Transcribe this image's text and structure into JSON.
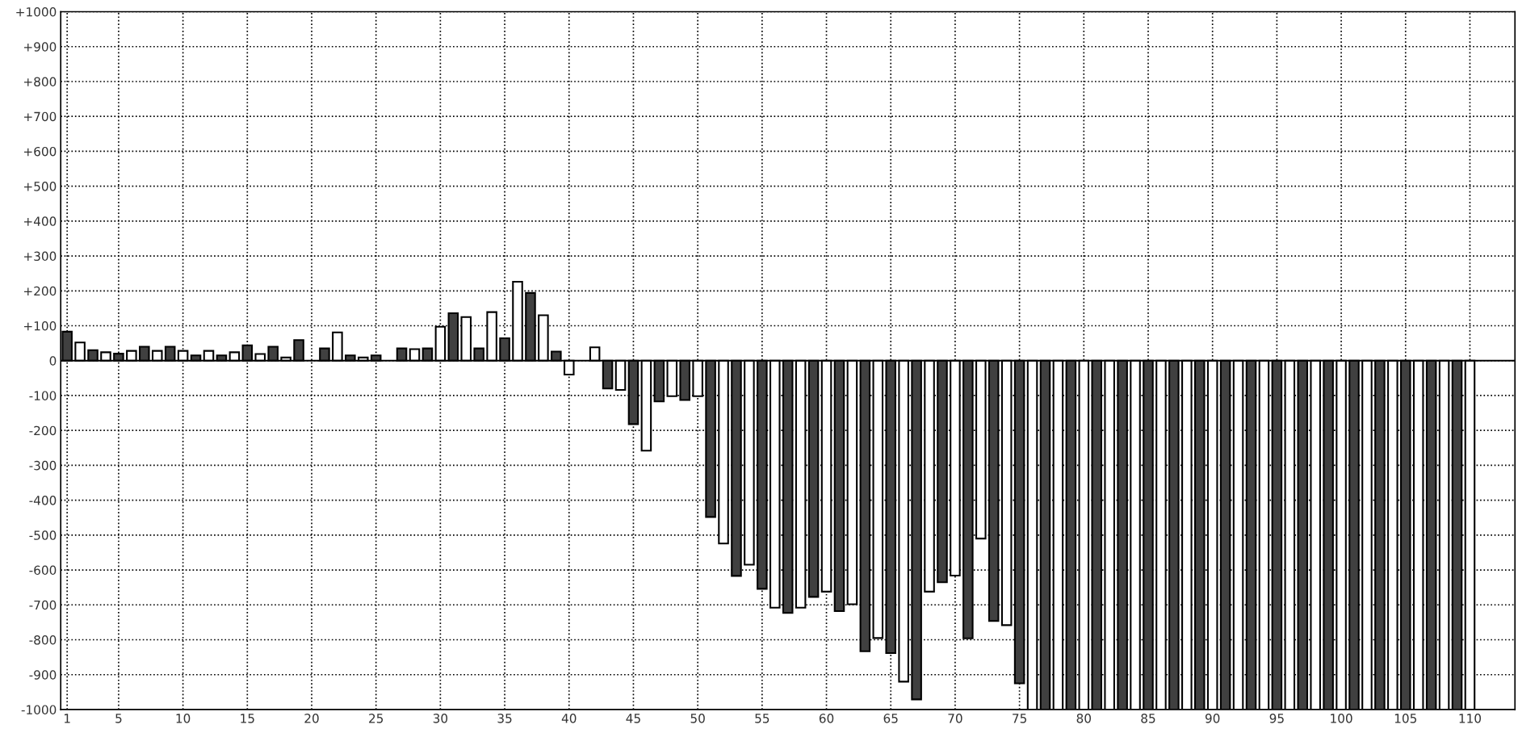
{
  "chart_data": {
    "type": "bar",
    "x": [
      1,
      2,
      3,
      4,
      5,
      6,
      7,
      8,
      9,
      10,
      11,
      12,
      13,
      14,
      15,
      16,
      17,
      18,
      19,
      20,
      21,
      22,
      23,
      24,
      25,
      26,
      27,
      28,
      29,
      30,
      31,
      32,
      33,
      34,
      35,
      36,
      37,
      38,
      39,
      40,
      41,
      42,
      43,
      44,
      45,
      46,
      47,
      48,
      49,
      50,
      51,
      52,
      53,
      54,
      55,
      56,
      57,
      58,
      59,
      60,
      61,
      62,
      63,
      64,
      65,
      66,
      67,
      68,
      69,
      70,
      71,
      72,
      73,
      74,
      75,
      76,
      77,
      78,
      79,
      80,
      81,
      82,
      83,
      84,
      85,
      86,
      87,
      88,
      89,
      90,
      91,
      92,
      93,
      94,
      95,
      96,
      97,
      98,
      99,
      100,
      101,
      102,
      103,
      104,
      105,
      106,
      107,
      108,
      109,
      110
    ],
    "values": [
      83,
      52,
      30,
      24,
      20,
      28,
      40,
      28,
      40,
      28,
      15,
      28,
      15,
      24,
      44,
      19,
      40,
      9,
      59,
      null,
      35,
      81,
      15,
      9,
      15,
      null,
      35,
      33,
      35,
      97,
      136,
      125,
      35,
      139,
      64,
      226,
      194,
      130,
      26,
      -40,
      null,
      38,
      -80,
      -84,
      -182,
      -258,
      -117,
      -102,
      -113,
      -102,
      -448,
      -524,
      -617,
      -585,
      -654,
      -708,
      -723,
      -708,
      -677,
      -662,
      -718,
      -698,
      -833,
      -795,
      -838,
      -920,
      -971,
      -662,
      -635,
      -616,
      -796,
      -510,
      -746,
      -758,
      -925,
      -1000,
      -1000,
      -1000,
      -1000,
      -1000,
      -1000,
      -1000,
      -1000,
      -1000,
      -1000,
      -1000,
      -1000,
      -1000,
      -1000,
      -1000,
      -1000,
      -1000,
      -1000,
      -1000,
      -1000,
      -1000,
      -1000,
      -1000,
      -1000,
      -1000,
      -1000,
      -1000,
      -1000,
      -1000,
      -1000,
      -1000,
      -1000,
      -1000,
      -1000,
      -1000
    ],
    "colors": [
      "#404040",
      "#ffffff",
      "#404040",
      "#ffffff",
      "#404040",
      "#ffffff",
      "#404040",
      "#ffffff",
      "#404040",
      "#ffffff",
      "#404040",
      "#ffffff",
      "#404040",
      "#ffffff",
      "#404040",
      "#ffffff",
      "#404040",
      "#ffffff",
      "#404040",
      "#ffffff",
      "#404040",
      "#ffffff",
      "#404040",
      "#ffffff",
      "#404040",
      "#ffffff",
      "#404040",
      "#ffffff",
      "#404040",
      "#ffffff",
      "#404040",
      "#ffffff",
      "#404040",
      "#ffffff",
      "#404040",
      "#ffffff",
      "#404040",
      "#ffffff",
      "#404040",
      "#ffffff",
      "#404040",
      "#ffffff",
      "#404040",
      "#ffffff",
      "#404040",
      "#ffffff",
      "#404040",
      "#ffffff",
      "#404040",
      "#ffffff",
      "#404040",
      "#ffffff",
      "#404040",
      "#ffffff",
      "#404040",
      "#ffffff",
      "#404040",
      "#ffffff",
      "#404040",
      "#ffffff",
      "#404040",
      "#ffffff",
      "#404040",
      "#ffffff",
      "#404040",
      "#ffffff",
      "#404040",
      "#ffffff",
      "#404040",
      "#ffffff",
      "#404040",
      "#ffffff",
      "#404040",
      "#ffffff",
      "#404040",
      "#ffffff",
      "#404040",
      "#ffffff",
      "#404040",
      "#ffffff",
      "#404040",
      "#ffffff",
      "#404040",
      "#ffffff",
      "#404040",
      "#ffffff",
      "#404040",
      "#ffffff",
      "#404040",
      "#ffffff",
      "#404040",
      "#ffffff",
      "#404040",
      "#ffffff",
      "#404040",
      "#ffffff",
      "#404040",
      "#ffffff",
      "#404040",
      "#ffffff",
      "#404040",
      "#ffffff",
      "#404040",
      "#ffffff",
      "#404040",
      "#ffffff",
      "#404040",
      "#ffffff",
      "#404040",
      "#ffffff"
    ],
    "xlim": [
      0.5,
      113.5
    ],
    "xticks": [
      1,
      5,
      10,
      15,
      20,
      25,
      30,
      35,
      40,
      45,
      50,
      55,
      60,
      65,
      70,
      75,
      80,
      85,
      90,
      95,
      100,
      105,
      110
    ],
    "ylim": [
      -1000,
      1000
    ],
    "yticks": [
      {
        "value": -1000,
        "label": "-1000"
      },
      {
        "value": -900,
        "label": "-900"
      },
      {
        "value": -800,
        "label": "-800"
      },
      {
        "value": -700,
        "label": "-700"
      },
      {
        "value": -600,
        "label": "-600"
      },
      {
        "value": -500,
        "label": "-500"
      },
      {
        "value": -400,
        "label": "-400"
      },
      {
        "value": -300,
        "label": "-300"
      },
      {
        "value": -200,
        "label": "-200"
      },
      {
        "value": -100,
        "label": "-100"
      },
      0,
      {
        "value": 100,
        "label": "+100"
      },
      {
        "value": 200,
        "label": "+200"
      },
      {
        "value": 300,
        "label": "+300"
      },
      {
        "value": 400,
        "label": "+400"
      },
      {
        "value": 500,
        "label": "+500"
      },
      {
        "value": 600,
        "label": "+600"
      },
      {
        "value": 700,
        "label": "+700"
      },
      {
        "value": 800,
        "label": "+800"
      },
      {
        "value": 900,
        "label": "+900"
      },
      {
        "value": 1000,
        "label": "+1000"
      }
    ],
    "grid": true
  }
}
